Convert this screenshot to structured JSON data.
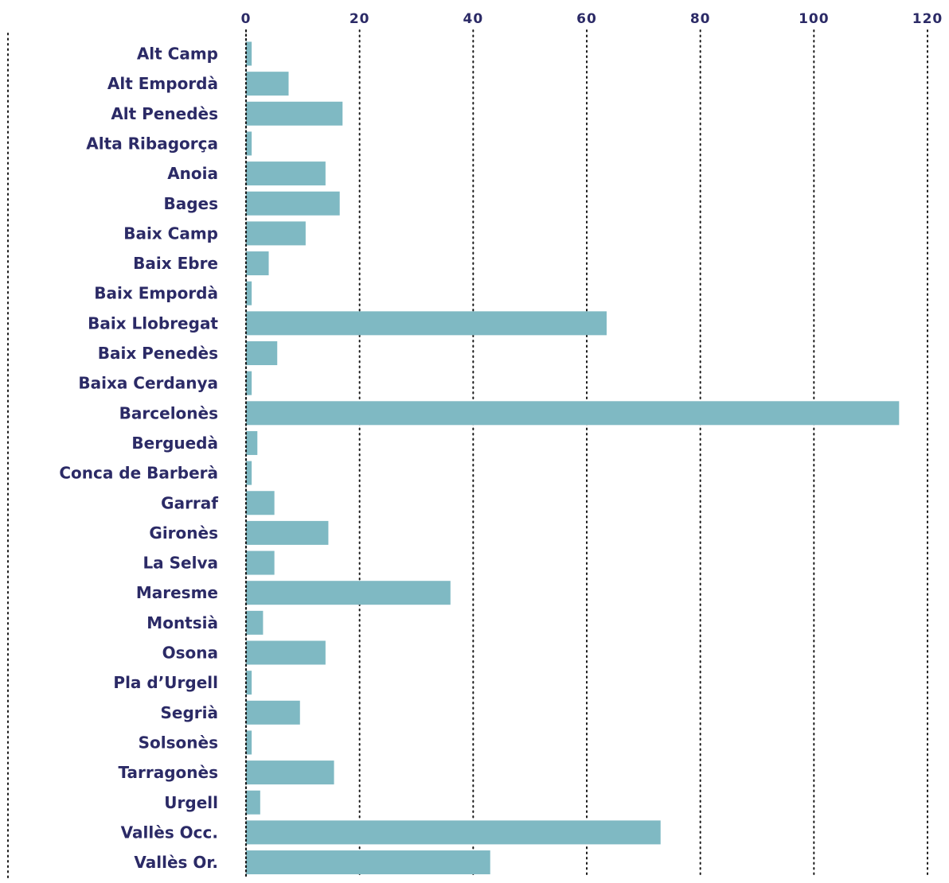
{
  "chart_data": {
    "type": "bar",
    "orientation": "horizontal",
    "title": "",
    "xlabel": "",
    "ylabel": "",
    "xlim": [
      0,
      120
    ],
    "x_ticks": [
      0,
      20,
      40,
      60,
      80,
      100,
      120
    ],
    "x_tick_labels": [
      "0",
      "20",
      "40",
      "60",
      "80",
      "100",
      "120"
    ],
    "x_axis_position": "top",
    "grid": true,
    "bar_color": "#7fb9c3",
    "label_color": "#2b2a66",
    "categories": [
      "Alt Camp",
      "Alt Empordà",
      "Alt Penedès",
      "Alta Ribagorça",
      "Anoia",
      "Bages",
      "Baix Camp",
      "Baix Ebre",
      "Baix Empordà",
      "Baix Llobregat",
      "Baix Penedès",
      "Baixa Cerdanya",
      "Barcelonès",
      "Berguedà",
      "Conca de Barberà",
      "Garraf",
      "Gironès",
      "La Selva",
      "Maresme",
      "Montsià",
      "Osona",
      "Pla d’Urgell",
      "Segrià",
      "Solsonès",
      "Tarragonès",
      "Urgell",
      "Vallès Occ.",
      "Vallès Or."
    ],
    "values": [
      1,
      7.5,
      17,
      1,
      14,
      16.5,
      10.5,
      4,
      1,
      63.5,
      5.5,
      1,
      115,
      2,
      1,
      5,
      14.5,
      5,
      36,
      3,
      14,
      1,
      9.5,
      1,
      15.5,
      2.5,
      73,
      43
    ]
  }
}
